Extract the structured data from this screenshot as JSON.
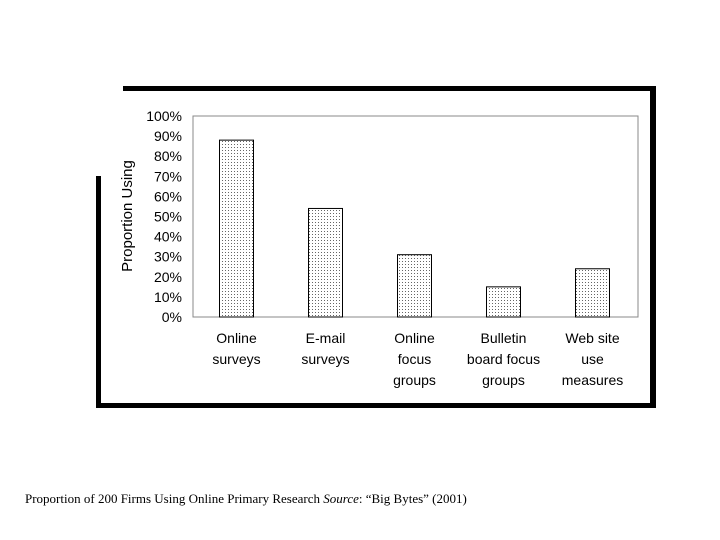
{
  "chart_data": {
    "type": "bar",
    "title": "",
    "ylabel": "Proportion Using",
    "xlabel": "",
    "categories": [
      [
        "Online",
        "surveys"
      ],
      [
        "E-mail",
        "surveys"
      ],
      [
        "Online",
        "focus",
        "groups"
      ],
      [
        "Bulletin",
        "board focus",
        "groups"
      ],
      [
        "Web site",
        "use",
        "measures"
      ]
    ],
    "values": [
      88,
      54,
      31,
      15,
      24
    ],
    "ylim": [
      0,
      100
    ],
    "yticks": [
      "0%",
      "10%",
      "20%",
      "30%",
      "40%",
      "50%",
      "60%",
      "70%",
      "80%",
      "90%",
      "100%"
    ],
    "grid": false,
    "bar_fill": "#e9e9e9"
  },
  "caption": {
    "text_before": "Proportion of 200 Firms Using Online Primary Research ",
    "source_label": "Source",
    "text_after": ": “Big Bytes” (2001)"
  }
}
